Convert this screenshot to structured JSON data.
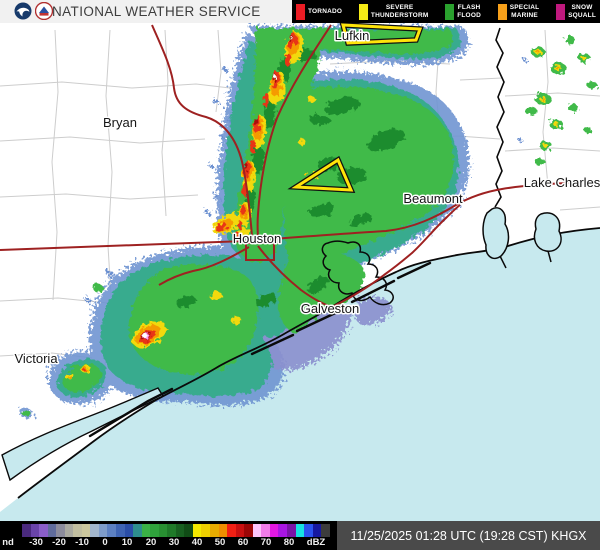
{
  "header": {
    "agency_title": "NATIONAL WEATHER SERVICE"
  },
  "warning_legend": {
    "items": [
      {
        "label_lines": [
          "TORNADO"
        ],
        "color": "#ec1c24"
      },
      {
        "label_lines": [
          "SEVERE",
          "THUNDERSTORM"
        ],
        "color": "#f6eb16"
      },
      {
        "label_lines": [
          "FLASH",
          "FLOOD"
        ],
        "color": "#2aa12e"
      },
      {
        "label_lines": [
          "SPECIAL",
          "MARINE"
        ],
        "color": "#f7a01a"
      },
      {
        "label_lines": [
          "SNOW",
          "SQUALL"
        ],
        "color": "#c0197e"
      }
    ]
  },
  "map": {
    "cities": [
      {
        "name": "Bryan"
      },
      {
        "name": "Lufkin"
      },
      {
        "name": "Beaumont"
      },
      {
        "name": "Lake Charles"
      },
      {
        "name": "Houston"
      },
      {
        "name": "Galveston"
      },
      {
        "name": "Victoria"
      }
    ],
    "warning_polygon_color": "#ffe40a",
    "road_color": "#9e2121",
    "water_color": "#c7e9ee",
    "radar_site": "KHGX"
  },
  "colorbar": {
    "labels": [
      "nd",
      "-30",
      "-20",
      "-10",
      "0",
      "10",
      "20",
      "30",
      "40",
      "50",
      "60",
      "70",
      "80",
      "dBZ"
    ],
    "nd_color": "#000000",
    "segments": [
      "#4a2a7e",
      "#6a44aa",
      "#8a5ec8",
      "#606c9c",
      "#8c8c9c",
      "#aaaaa0",
      "#c2bfa0",
      "#ccc89e",
      "#a2b6cc",
      "#7e9cca",
      "#5c80c2",
      "#3e64b4",
      "#2a4ea8",
      "#2e8e8e",
      "#3ab246",
      "#2fa23c",
      "#289032",
      "#1f7a29",
      "#176020",
      "#104c16",
      "#f2ea00",
      "#eccf00",
      "#e8ac00",
      "#ee8e00",
      "#f02014",
      "#c81010",
      "#9a0606",
      "#fcc4fa",
      "#f07ce8",
      "#e218e2",
      "#a816e2",
      "#7a14a8",
      "#16e2e2",
      "#2a52ee",
      "#1618a0",
      "#3c3c3c"
    ]
  },
  "status_bar": {
    "timestamp": "11/25/2025 01:28 UTC (19:28 CST) KHGX"
  }
}
